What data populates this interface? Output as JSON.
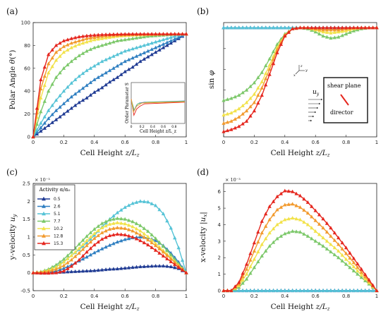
{
  "series_names": [
    "0.5",
    "2.6",
    "5.1",
    "7.7",
    "10.2",
    "12.8",
    "15.3"
  ],
  "colors": [
    "#1f3a93",
    "#2f7fc1",
    "#55c3d6",
    "#7cc86a",
    "#f2e24a",
    "#f29a2e",
    "#e5261e"
  ],
  "chart_data": [
    {
      "type": "line",
      "panel_label": "(a)",
      "xlabel": "Cell Height z/L_z",
      "ylabel": "Polar Angle θ(°)",
      "xlim": [
        0,
        1
      ],
      "ylim": [
        0,
        100
      ],
      "xticks": [
        "0",
        "0.2",
        "0.4",
        "0.6",
        "0.8",
        "1"
      ],
      "yticks": [
        "0",
        "20",
        "40",
        "60",
        "80",
        "100"
      ],
      "x": [
        0,
        0.05,
        0.1,
        0.15,
        0.2,
        0.25,
        0.3,
        0.35,
        0.4,
        0.45,
        0.5,
        0.55,
        0.6,
        0.65,
        0.7,
        0.75,
        0.8,
        0.85,
        0.9,
        0.95,
        1
      ],
      "series": [
        {
          "values": [
            0,
            5,
            10,
            15,
            20,
            25,
            30,
            34,
            39,
            43,
            48,
            52,
            57,
            61,
            66,
            70,
            74,
            78,
            82,
            86,
            90
          ]
        },
        {
          "values": [
            0,
            8,
            16,
            23,
            29,
            35,
            40,
            45,
            50,
            54,
            58,
            62,
            66,
            69,
            72,
            75,
            78,
            81,
            84,
            87,
            90
          ]
        },
        {
          "values": [
            0,
            12,
            23,
            32,
            40,
            47,
            53,
            58,
            62,
            66,
            69,
            72,
            75,
            77,
            79,
            81,
            83,
            85,
            87,
            89,
            90
          ]
        },
        {
          "values": [
            0,
            22,
            40,
            52,
            60,
            66,
            71,
            75,
            78,
            80,
            82,
            84,
            85,
            86,
            87,
            88,
            88.5,
            89,
            89.5,
            90,
            90
          ]
        },
        {
          "values": [
            0,
            34,
            56,
            67,
            74,
            78,
            81,
            83,
            85,
            86,
            87,
            88,
            88.5,
            89,
            89.2,
            89.5,
            89.7,
            89.8,
            90,
            90,
            90
          ]
        },
        {
          "values": [
            0,
            42,
            64,
            74,
            79,
            82,
            84,
            86,
            87,
            88,
            88.6,
            89,
            89.3,
            89.5,
            89.7,
            89.8,
            89.9,
            90,
            90,
            90,
            90
          ]
        },
        {
          "values": [
            0,
            50,
            72,
            80,
            84,
            86,
            87.5,
            88.4,
            89,
            89.4,
            89.6,
            89.8,
            89.9,
            90,
            90,
            90,
            90,
            90,
            90,
            90,
            90
          ]
        }
      ],
      "inset": {
        "xlabel": "Cell Height z/L_z",
        "ylabel": "Order Parameter S",
        "xticks": [
          "0",
          "0.2",
          "0.4",
          "0.6",
          "0.8"
        ]
      }
    },
    {
      "type": "line",
      "panel_label": "(b)",
      "xlabel": "Cell Height z/L_z",
      "ylabel": "sin φ",
      "xlim": [
        0,
        1
      ],
      "ylim": [
        -0.05,
        1.05
      ],
      "xticks": [
        "0",
        "0.2",
        "0.4",
        "0.6",
        "0.8",
        "1"
      ],
      "x": [
        0,
        0.05,
        0.1,
        0.15,
        0.2,
        0.25,
        0.3,
        0.35,
        0.4,
        0.45,
        0.5,
        0.55,
        0.6,
        0.65,
        0.7,
        0.75,
        0.8,
        0.85,
        0.9,
        0.95,
        1
      ],
      "series": [
        {
          "values": [
            1,
            1,
            1,
            1,
            1,
            1,
            1,
            1,
            1,
            1,
            1,
            1,
            1,
            1,
            1,
            1,
            1,
            1,
            1,
            1,
            1
          ]
        },
        {
          "values": [
            1,
            1,
            1,
            1,
            1,
            1,
            1,
            1,
            1,
            1,
            1,
            1,
            1,
            1,
            1,
            1,
            1,
            1,
            1,
            1,
            1
          ]
        },
        {
          "values": [
            1,
            1,
            1,
            1,
            1,
            1,
            1,
            1,
            1,
            1,
            1,
            1,
            1,
            1,
            1,
            1,
            1,
            1,
            1,
            1,
            1
          ]
        },
        {
          "values": [
            0.3,
            0.32,
            0.35,
            0.4,
            0.47,
            0.57,
            0.7,
            0.84,
            0.94,
            0.99,
            1,
            0.99,
            0.96,
            0.92,
            0.9,
            0.91,
            0.94,
            0.97,
            0.99,
            1,
            1
          ]
        },
        {
          "values": [
            0.16,
            0.18,
            0.22,
            0.28,
            0.36,
            0.48,
            0.64,
            0.81,
            0.93,
            0.99,
            1,
            1,
            0.98,
            0.96,
            0.95,
            0.96,
            0.97,
            0.99,
            1,
            1,
            1
          ]
        },
        {
          "values": [
            0.08,
            0.1,
            0.14,
            0.2,
            0.28,
            0.42,
            0.6,
            0.79,
            0.93,
            0.99,
            1,
            1,
            0.99,
            0.98,
            0.98,
            0.98,
            0.99,
            1,
            1,
            1,
            1
          ]
        },
        {
          "values": [
            0,
            0.02,
            0.05,
            0.1,
            0.2,
            0.35,
            0.55,
            0.76,
            0.92,
            0.99,
            1,
            1,
            1,
            1,
            1,
            1,
            1,
            1,
            1,
            1,
            1
          ]
        }
      ],
      "inset_labels": {
        "shear_plane": "shear plane",
        "director": "director",
        "velocity": "u",
        "velocity_sub": "y"
      }
    },
    {
      "type": "line",
      "panel_label": "(c)",
      "xlabel": "Cell Height z/L_z",
      "ylabel": "y-velocity u_y",
      "multiplier": "× 10⁻³",
      "xlim": [
        0,
        1
      ],
      "ylim": [
        -0.5,
        2.5
      ],
      "xticks": [
        "0",
        "0.2",
        "0.4",
        "0.6",
        "0.8",
        "1"
      ],
      "yticks": [
        "-0.5",
        "0",
        "0.5",
        "1",
        "1.5",
        "2",
        "2.5"
      ],
      "legend": {
        "title": "Activity α/α₀",
        "position": "top-left"
      },
      "x": [
        0,
        0.05,
        0.1,
        0.15,
        0.2,
        0.25,
        0.3,
        0.35,
        0.4,
        0.45,
        0.5,
        0.55,
        0.6,
        0.65,
        0.7,
        0.75,
        0.8,
        0.85,
        0.9,
        0.95,
        1
      ],
      "series": [
        {
          "values": [
            0,
            0,
            0,
            0.01,
            0.02,
            0.03,
            0.04,
            0.05,
            0.06,
            0.08,
            0.1,
            0.11,
            0.13,
            0.15,
            0.17,
            0.18,
            0.19,
            0.19,
            0.17,
            0.12,
            0
          ]
        },
        {
          "values": [
            0,
            0,
            0.01,
            0.05,
            0.12,
            0.22,
            0.33,
            0.44,
            0.56,
            0.67,
            0.77,
            0.86,
            0.93,
            0.98,
            1.0,
            0.98,
            0.9,
            0.76,
            0.55,
            0.3,
            0
          ]
        },
        {
          "values": [
            0,
            0.02,
            0.08,
            0.18,
            0.32,
            0.48,
            0.65,
            0.84,
            1.05,
            1.28,
            1.5,
            1.68,
            1.83,
            1.94,
            2.0,
            1.98,
            1.88,
            1.65,
            1.25,
            0.7,
            0
          ]
        },
        {
          "values": [
            0,
            0.03,
            0.1,
            0.22,
            0.38,
            0.58,
            0.8,
            1.02,
            1.22,
            1.38,
            1.48,
            1.52,
            1.5,
            1.43,
            1.32,
            1.16,
            0.96,
            0.74,
            0.5,
            0.25,
            0
          ]
        },
        {
          "values": [
            0,
            0.02,
            0.07,
            0.16,
            0.3,
            0.48,
            0.68,
            0.9,
            1.1,
            1.26,
            1.36,
            1.4,
            1.37,
            1.29,
            1.17,
            1.01,
            0.82,
            0.62,
            0.42,
            0.21,
            0
          ]
        },
        {
          "values": [
            0,
            0.01,
            0.04,
            0.1,
            0.2,
            0.36,
            0.55,
            0.76,
            0.96,
            1.12,
            1.22,
            1.26,
            1.24,
            1.17,
            1.06,
            0.92,
            0.76,
            0.58,
            0.39,
            0.19,
            0
          ]
        },
        {
          "values": [
            0,
            -0.01,
            -0.01,
            0,
            0.05,
            0.18,
            0.36,
            0.58,
            0.78,
            0.94,
            1.04,
            1.08,
            1.06,
            1.0,
            0.9,
            0.78,
            0.63,
            0.47,
            0.31,
            0.15,
            0
          ]
        }
      ]
    },
    {
      "type": "line",
      "panel_label": "(d)",
      "xlabel": "Cell Height z/L_z",
      "ylabel": "x-velocity |u_x|",
      "multiplier": "× 10⁻³",
      "xlim": [
        0,
        1
      ],
      "ylim": [
        0,
        6.5
      ],
      "xticks": [
        "0",
        "0.2",
        "0.4",
        "0.6",
        "0.8",
        "1"
      ],
      "yticks": [
        "0",
        "1",
        "2",
        "3",
        "4",
        "5",
        "6"
      ],
      "x": [
        0,
        0.05,
        0.1,
        0.15,
        0.2,
        0.25,
        0.3,
        0.35,
        0.4,
        0.45,
        0.5,
        0.55,
        0.6,
        0.65,
        0.7,
        0.75,
        0.8,
        0.85,
        0.9,
        0.95,
        1
      ],
      "series": [
        {
          "values": [
            0,
            0,
            0,
            0,
            0,
            0,
            0,
            0,
            0,
            0,
            0,
            0,
            0,
            0,
            0,
            0,
            0,
            0,
            0,
            0,
            0
          ]
        },
        {
          "values": [
            0,
            0,
            0,
            0,
            0,
            0,
            0,
            0,
            0,
            0,
            0,
            0,
            0,
            0,
            0,
            0,
            0,
            0,
            0,
            0,
            0
          ]
        },
        {
          "values": [
            0,
            0,
            0,
            0,
            0,
            0,
            0,
            0,
            0,
            0,
            0,
            0,
            0,
            0,
            0,
            0,
            0,
            0,
            0,
            0,
            0
          ]
        },
        {
          "values": [
            0,
            0,
            0.2,
            0.7,
            1.4,
            2.1,
            2.7,
            3.15,
            3.45,
            3.6,
            3.55,
            3.3,
            3.0,
            2.7,
            2.35,
            2.0,
            1.6,
            1.2,
            0.8,
            0.4,
            0
          ]
        },
        {
          "values": [
            0,
            0,
            0.3,
            1.0,
            1.9,
            2.8,
            3.5,
            4.0,
            4.3,
            4.4,
            4.3,
            4.0,
            3.6,
            3.2,
            2.8,
            2.4,
            1.9,
            1.45,
            0.95,
            0.48,
            0
          ]
        },
        {
          "values": [
            0,
            0,
            0.4,
            1.3,
            2.4,
            3.5,
            4.3,
            4.9,
            5.2,
            5.25,
            5.05,
            4.7,
            4.25,
            3.8,
            3.3,
            2.8,
            2.25,
            1.7,
            1.12,
            0.56,
            0
          ]
        },
        {
          "values": [
            0,
            0,
            0.5,
            1.6,
            2.9,
            4.2,
            5.1,
            5.7,
            6.05,
            6.0,
            5.75,
            5.35,
            4.85,
            4.35,
            3.8,
            3.2,
            2.6,
            1.95,
            1.3,
            0.65,
            0
          ]
        }
      ]
    }
  ]
}
